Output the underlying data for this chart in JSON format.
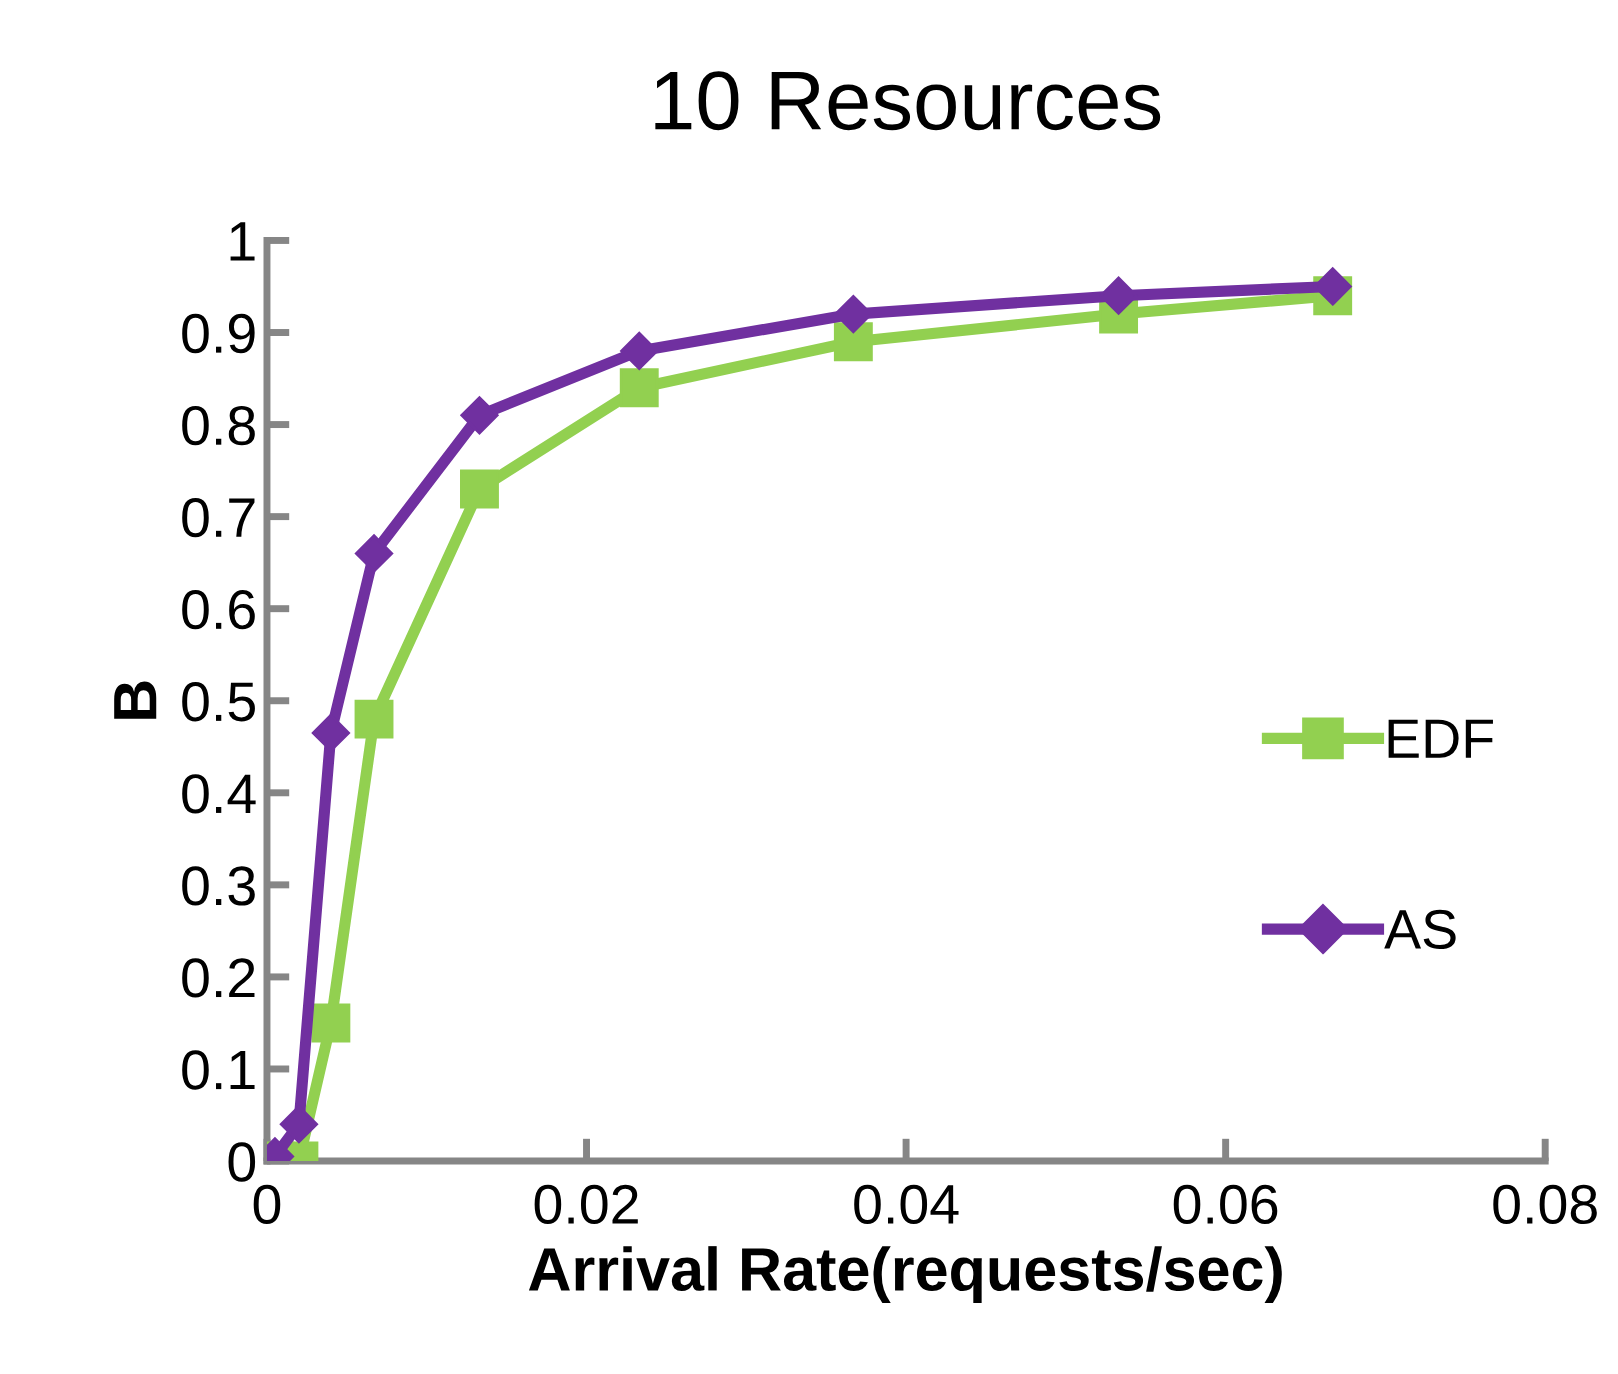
{
  "chart_data": {
    "type": "line",
    "title": "10 Resources",
    "xlabel": "Arrival Rate(requests/sec)",
    "ylabel": "B",
    "xlim": [
      0,
      0.08
    ],
    "xticks": [
      0,
      0.02,
      0.04,
      0.06,
      0.08
    ],
    "ylim": [
      0,
      1
    ],
    "yticks": [
      0,
      0.1,
      0.2,
      0.3,
      0.4,
      0.5,
      0.6,
      0.7,
      0.8,
      0.9,
      1
    ],
    "grid": false,
    "legend": "right",
    "line_style": "solid",
    "series": [
      {
        "name": "EDF",
        "color": "#92d050",
        "marker": "square",
        "x": [
          0.0005,
          0.002,
          0.004,
          0.0067,
          0.0133,
          0.0233,
          0.0367,
          0.0533,
          0.0667
        ],
        "values": [
          0,
          0,
          0.15,
          0.48,
          0.73,
          0.84,
          0.89,
          0.92,
          0.94
        ]
      },
      {
        "name": "AS",
        "color": "#7030a0",
        "marker": "diamond",
        "x": [
          0.0005,
          0.002,
          0.004,
          0.0067,
          0.0133,
          0.0233,
          0.0367,
          0.0533,
          0.0667
        ],
        "values": [
          0.005,
          0.04,
          0.465,
          0.66,
          0.81,
          0.88,
          0.92,
          0.94,
          0.95
        ]
      }
    ]
  }
}
